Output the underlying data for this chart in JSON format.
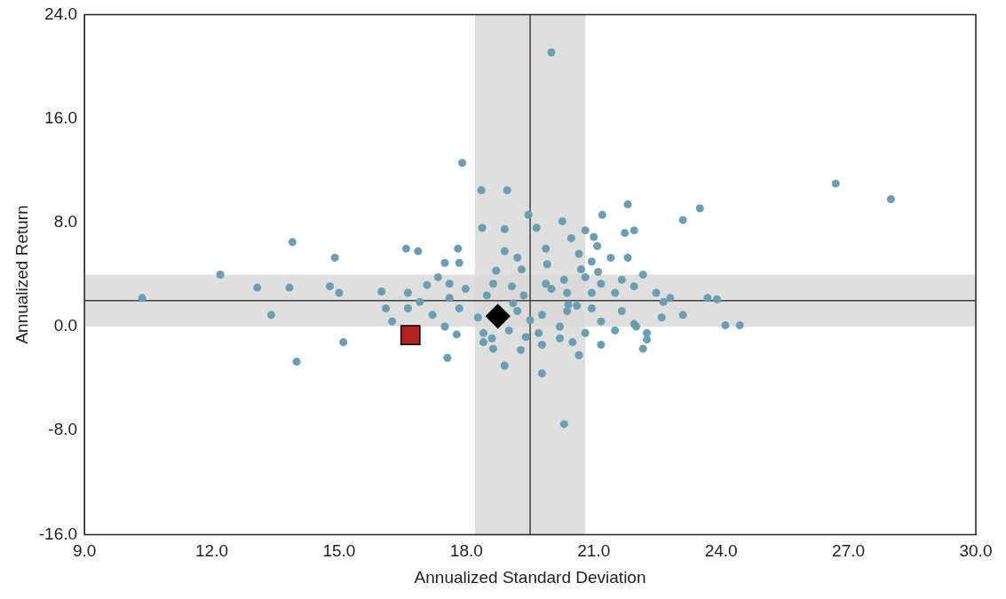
{
  "chart_data": {
    "type": "scatter",
    "xlabel": "Annualized Standard Deviation",
    "ylabel": "Annualized Return",
    "xlim": [
      9,
      30
    ],
    "ylim": [
      -16,
      24
    ],
    "xticks": [
      {
        "value": 9,
        "label": "9.0"
      },
      {
        "value": 12,
        "label": "12.0"
      },
      {
        "value": 15,
        "label": "15.0"
      },
      {
        "value": 18,
        "label": "18.0"
      },
      {
        "value": 21,
        "label": "21.0"
      },
      {
        "value": 24,
        "label": "24.0"
      },
      {
        "value": 27,
        "label": "27.0"
      },
      {
        "value": 30,
        "label": "30.0"
      }
    ],
    "yticks": [
      {
        "value": -16,
        "label": "-16.0"
      },
      {
        "value": -8,
        "label": "-8.0"
      },
      {
        "value": 0,
        "label": "0.0"
      },
      {
        "value": 8,
        "label": "8.0"
      },
      {
        "value": 16,
        "label": "16.0"
      },
      {
        "value": 24,
        "label": "24.0"
      }
    ],
    "grid": false,
    "legend": false,
    "bands": [
      {
        "axis": "x",
        "from": 18.2,
        "to": 20.8,
        "color": "#d9d9d9"
      },
      {
        "axis": "y",
        "from": 0,
        "to": 4,
        "color": "#d9d9d9"
      }
    ],
    "ref_lines": [
      {
        "axis": "x",
        "value": 19.5,
        "color": "#404040"
      },
      {
        "axis": "y",
        "value": 2,
        "color": "#404040"
      }
    ],
    "series": [
      {
        "marker": "circle",
        "color": "#6b9db3",
        "x": [
          20.0,
          17.9,
          18.35,
          18.96,
          13.9,
          14.9,
          12.2,
          13.07,
          13.83,
          14.78,
          15.0,
          10.36,
          13.4,
          15.1,
          14.0,
          16.0,
          16.62,
          16.1,
          16.25,
          16.58,
          16.86,
          17.8,
          17.49,
          17.83,
          17.33,
          17.07,
          17.6,
          17.55,
          17.77,
          26.7,
          28.0,
          23.5,
          23.1,
          21.8,
          21.2,
          21.73,
          21.95,
          21.4,
          21.8,
          22.16,
          23.68,
          23.9,
          22.64,
          22.8,
          23.1,
          22.6,
          24.1,
          24.44,
          22.25,
          22.16,
          21.17,
          20.3,
          19.46,
          18.37,
          18.9,
          19.65,
          20.26,
          20.47,
          20.8,
          21.0,
          21.08,
          18.9,
          19.2,
          19.87,
          20.65,
          20.95,
          17.98,
          18.63,
          19.07,
          19.87,
          20.3,
          20.8,
          21.17,
          21.66,
          21.95,
          22.47,
          21.5,
          20.95,
          20.37,
          18.48,
          19.35,
          17.6,
          16.9,
          17.2,
          17.83,
          18.27,
          19.2,
          19.78,
          20.37,
          20.95,
          21.17,
          21.66,
          21.95,
          17.49,
          18.4,
          19.0,
          19.7,
          20.2,
          20.8,
          21.5,
          22.0,
          22.25,
          18.63,
          19.28,
          19.78,
          20.65,
          18.9,
          19.78,
          18.4,
          20.5,
          16.62,
          19.3,
          20.7,
          21.1,
          19.1,
          19.5,
          20.0,
          20.6,
          18.7,
          19.9,
          20.2,
          18.6,
          19.4,
          20.4
        ],
        "values": [
          21.1,
          12.6,
          10.5,
          10.5,
          6.5,
          5.3,
          4.0,
          3.0,
          3.0,
          3.1,
          2.6,
          2.2,
          0.9,
          -1.2,
          -2.7,
          2.7,
          2.6,
          1.4,
          0.4,
          6.0,
          5.8,
          6.0,
          4.9,
          4.9,
          3.8,
          3.2,
          3.3,
          -2.4,
          -0.6,
          11.0,
          9.8,
          9.1,
          8.2,
          9.4,
          8.6,
          7.2,
          7.4,
          5.3,
          5.3,
          4.0,
          2.2,
          2.1,
          1.9,
          2.2,
          0.9,
          0.7,
          0.1,
          0.1,
          -0.5,
          -1.7,
          -1.4,
          -7.5,
          8.6,
          7.6,
          7.5,
          7.6,
          8.1,
          6.8,
          7.4,
          6.9,
          6.2,
          5.8,
          5.3,
          6.0,
          5.6,
          5.0,
          2.9,
          3.3,
          3.1,
          3.3,
          3.6,
          3.8,
          3.3,
          3.6,
          3.1,
          2.6,
          2.6,
          2.6,
          2.6,
          2.4,
          2.4,
          2.2,
          1.9,
          0.9,
          1.4,
          0.7,
          1.2,
          0.9,
          1.2,
          1.4,
          0.4,
          1.2,
          0.2,
          0.0,
          -0.5,
          -0.3,
          -0.5,
          0.0,
          -0.5,
          -0.3,
          0.0,
          -1.0,
          -1.7,
          -1.8,
          -1.4,
          -2.2,
          -3.0,
          -3.6,
          -1.2,
          -1.2,
          1.4,
          4.4,
          4.4,
          4.2,
          1.8,
          0.5,
          2.9,
          1.6,
          4.3,
          4.8,
          -0.9,
          -0.9,
          -0.8,
          1.7
        ]
      },
      {
        "marker": "square",
        "color": "#b22222",
        "x": [
          16.68
        ],
        "values": [
          -0.65
        ]
      },
      {
        "marker": "diamond",
        "color": "#000000",
        "x": [
          18.74
        ],
        "values": [
          0.8
        ]
      }
    ]
  }
}
